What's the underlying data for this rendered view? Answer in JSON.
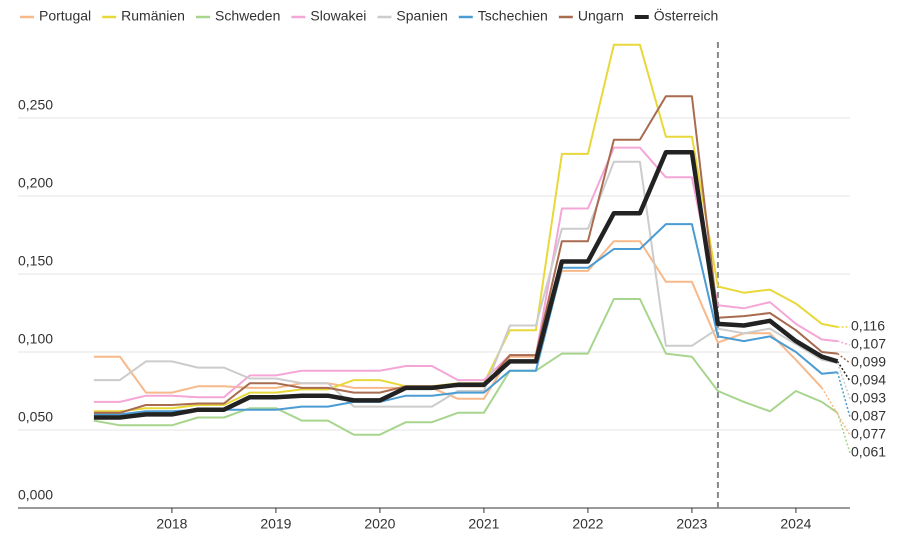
{
  "chart_data": {
    "type": "line",
    "x": [
      2017.25,
      2017.5,
      2017.75,
      2018,
      2018.25,
      2018.5,
      2018.75,
      2019,
      2019.25,
      2019.5,
      2019.75,
      2020,
      2020.25,
      2020.5,
      2020.75,
      2021,
      2021.25,
      2021.5,
      2021.75,
      2022,
      2022.25,
      2022.5,
      2022.75,
      2023,
      2023.25,
      2023.5,
      2023.75,
      2024,
      2024.25,
      2024.4
    ],
    "xlim": [
      2016.52,
      2024.52
    ],
    "xticks": [
      2018,
      2019,
      2020,
      2021,
      2022,
      2023,
      2024
    ],
    "ylim": [
      0,
      0.3
    ],
    "yticks": [
      {
        "value": 0,
        "label": "0,000"
      },
      {
        "value": 0.05,
        "label": "0,050"
      },
      {
        "value": 0.1,
        "label": "0,100"
      },
      {
        "value": 0.15,
        "label": "0,150"
      },
      {
        "value": 0.2,
        "label": "0,200"
      },
      {
        "value": 0.25,
        "label": "0,250"
      }
    ],
    "grid": true,
    "legend": "top-left",
    "forecast_start": 2023.25,
    "series": [
      {
        "name": "Portugal",
        "color": "#f7b98a",
        "label_color": "#c7763a",
        "width": 2,
        "values": [
          0.097,
          0.097,
          0.074,
          0.074,
          0.078,
          0.078,
          0.077,
          0.077,
          0.08,
          0.08,
          0.077,
          0.077,
          0.077,
          0.077,
          0.07,
          0.07,
          0.097,
          0.097,
          0.152,
          0.152,
          0.171,
          0.171,
          0.145,
          0.145,
          0.106,
          0.112,
          0.112,
          0.095,
          0.077,
          null
        ],
        "end_label": {
          "value": 0.077,
          "label": "0,077"
        }
      },
      {
        "name": "Rumänien",
        "color": "#e8d83a",
        "label_color": "#9a8a00",
        "width": 2,
        "values": [
          0.062,
          0.062,
          0.064,
          0.064,
          0.066,
          0.066,
          0.074,
          0.074,
          0.076,
          0.076,
          0.082,
          0.082,
          0.078,
          0.078,
          0.08,
          0.08,
          0.114,
          0.114,
          0.227,
          0.227,
          0.297,
          0.297,
          0.238,
          0.238,
          0.142,
          0.138,
          0.14,
          0.131,
          0.118,
          0.116
        ],
        "end_label": {
          "value": 0.116,
          "label": "0,116"
        }
      },
      {
        "name": "Schweden",
        "color": "#a8d58e",
        "label_color": "#7aa860",
        "width": 2,
        "values": [
          0.056,
          0.053,
          0.053,
          0.053,
          0.058,
          0.058,
          0.064,
          0.064,
          0.056,
          0.056,
          0.047,
          0.047,
          0.055,
          0.055,
          0.061,
          0.061,
          0.088,
          0.088,
          0.099,
          0.099,
          0.134,
          0.134,
          0.099,
          0.097,
          0.075,
          0.068,
          0.062,
          0.075,
          0.068,
          0.061
        ],
        "end_label": {
          "value": 0.061,
          "label": "0,061"
        }
      },
      {
        "name": "Slowakei",
        "color": "#f4a6d7",
        "label_color": "#b5669a",
        "width": 2,
        "values": [
          0.068,
          0.068,
          0.072,
          0.072,
          0.071,
          0.071,
          0.085,
          0.085,
          0.088,
          0.088,
          0.088,
          0.088,
          0.091,
          0.091,
          0.082,
          0.082,
          0.098,
          0.098,
          0.192,
          0.192,
          0.231,
          0.231,
          0.212,
          0.212,
          0.13,
          0.128,
          0.132,
          0.118,
          0.108,
          0.107
        ],
        "end_label": {
          "value": 0.107,
          "label": "0,107"
        }
      },
      {
        "name": "Spanien",
        "color": "#cccccc",
        "label_color": "#999999",
        "width": 2,
        "values": [
          0.082,
          0.082,
          0.094,
          0.094,
          0.09,
          0.09,
          0.083,
          0.083,
          0.08,
          0.08,
          0.065,
          0.065,
          0.065,
          0.065,
          0.075,
          0.075,
          0.117,
          0.117,
          0.179,
          0.179,
          0.222,
          0.222,
          0.104,
          0.104,
          0.115,
          0.112,
          0.115,
          0.105,
          0.095,
          0.093
        ],
        "end_label": {
          "value": 0.093,
          "label": "0,093"
        }
      },
      {
        "name": "Tschechien",
        "color": "#4b9cd3",
        "label_color": "#3c8ab8",
        "width": 2,
        "values": [
          0.06,
          0.06,
          0.062,
          0.062,
          0.063,
          0.063,
          0.063,
          0.063,
          0.065,
          0.065,
          0.068,
          0.068,
          0.072,
          0.072,
          0.074,
          0.074,
          0.088,
          0.088,
          0.154,
          0.154,
          0.166,
          0.166,
          0.182,
          0.182,
          0.11,
          0.107,
          0.11,
          0.1,
          0.086,
          0.087
        ],
        "end_label": {
          "value": 0.087,
          "label": "0,087"
        }
      },
      {
        "name": "Ungarn",
        "color": "#a86b4f",
        "label_color": "#a8684a",
        "width": 2,
        "values": [
          0.061,
          0.061,
          0.066,
          0.066,
          0.067,
          0.067,
          0.08,
          0.08,
          0.077,
          0.077,
          0.074,
          0.074,
          0.078,
          0.078,
          0.078,
          0.078,
          0.098,
          0.098,
          0.171,
          0.171,
          0.236,
          0.236,
          0.264,
          0.264,
          0.122,
          0.123,
          0.125,
          0.114,
          0.1,
          0.099
        ],
        "end_label": {
          "value": 0.099,
          "label": "0,099"
        }
      },
      {
        "name": "Österreich",
        "color": "#222222",
        "label_color": "#222222",
        "width": 4.5,
        "values": [
          0.058,
          0.058,
          0.06,
          0.06,
          0.063,
          0.063,
          0.071,
          0.071,
          0.072,
          0.072,
          0.069,
          0.069,
          0.077,
          0.077,
          0.079,
          0.079,
          0.094,
          0.094,
          0.158,
          0.158,
          0.189,
          0.189,
          0.228,
          0.228,
          0.118,
          0.117,
          0.12,
          0.107,
          0.097,
          0.094
        ],
        "end_label": {
          "value": 0.094,
          "label": "0,094"
        }
      }
    ]
  }
}
